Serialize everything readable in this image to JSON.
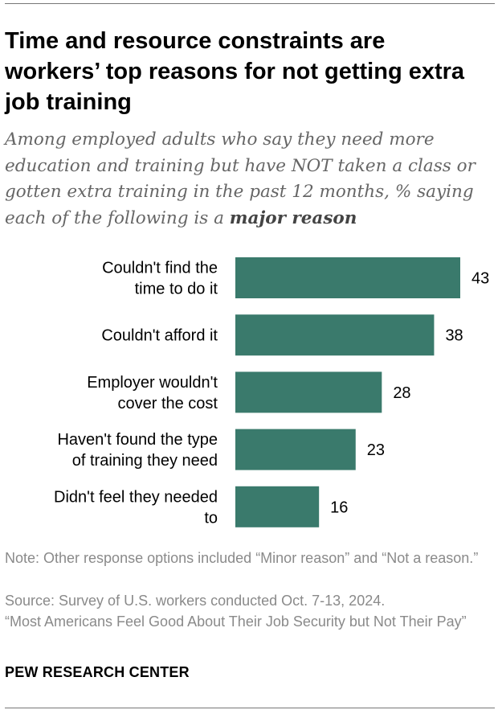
{
  "header": {
    "title": "Time and resource constraints are workers’ top reasons for not getting extra job training",
    "subtitle_prefix": "Among employed adults who say they need more education and training but have NOT taken a class or gotten extra training in the past 12 months, % saying each of the following is a ",
    "subtitle_emphasis": "major reason"
  },
  "chart_data": {
    "type": "bar",
    "orientation": "horizontal",
    "categories": [
      [
        "Couldn't find the",
        "time to do it"
      ],
      [
        "Couldn't afford it"
      ],
      [
        "Employer wouldn't",
        "cover the cost"
      ],
      [
        "Haven't found the type",
        "of training they need"
      ],
      [
        "Didn't feel they needed",
        "to"
      ]
    ],
    "values": [
      43,
      38,
      28,
      23,
      16
    ],
    "bar_color": "#3a7a6c",
    "xlim": [
      0,
      43
    ],
    "grid": false,
    "data_labels": true
  },
  "footer": {
    "note": "Note: Other response options included “Minor reason” and “Not a reason.”",
    "source": "Source: Survey of U.S. workers conducted Oct. 7-13, 2024.",
    "report": "“Most Americans Feel Good About Their Job Security but Not Their Pay”",
    "brand": "PEW RESEARCH CENTER"
  }
}
